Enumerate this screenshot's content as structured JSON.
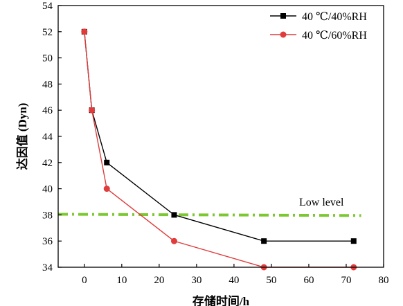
{
  "chart_data": {
    "type": "line",
    "title": "",
    "xlabel": "存储时间/h",
    "ylabel": "达因值 (Dyn)",
    "xlim": [
      -7,
      80
    ],
    "ylim": [
      34,
      54
    ],
    "x_ticks": [
      0,
      10,
      20,
      30,
      40,
      50,
      60,
      70,
      80
    ],
    "y_ticks": [
      34,
      36,
      38,
      40,
      42,
      44,
      46,
      48,
      50,
      52,
      54
    ],
    "grid": false,
    "legend_position": "top-right",
    "series": [
      {
        "name": "40 ℃/40%RH",
        "color": "#000000",
        "marker": "square",
        "x": [
          0,
          2,
          6,
          24,
          48,
          72
        ],
        "y": [
          52,
          46,
          42,
          38,
          36,
          36
        ]
      },
      {
        "name": "40 ℃/60%RH",
        "color": "#e03c3c",
        "marker": "circle",
        "x": [
          0,
          2,
          6,
          24,
          48,
          72
        ],
        "y": [
          52,
          46,
          40,
          36,
          34,
          34
        ]
      }
    ],
    "reference_lines": [
      {
        "label": "Low level",
        "color": "#7dc832",
        "style": "dash-dot",
        "x": [
          -7,
          74
        ],
        "y": [
          38.05,
          37.95
        ]
      }
    ]
  }
}
